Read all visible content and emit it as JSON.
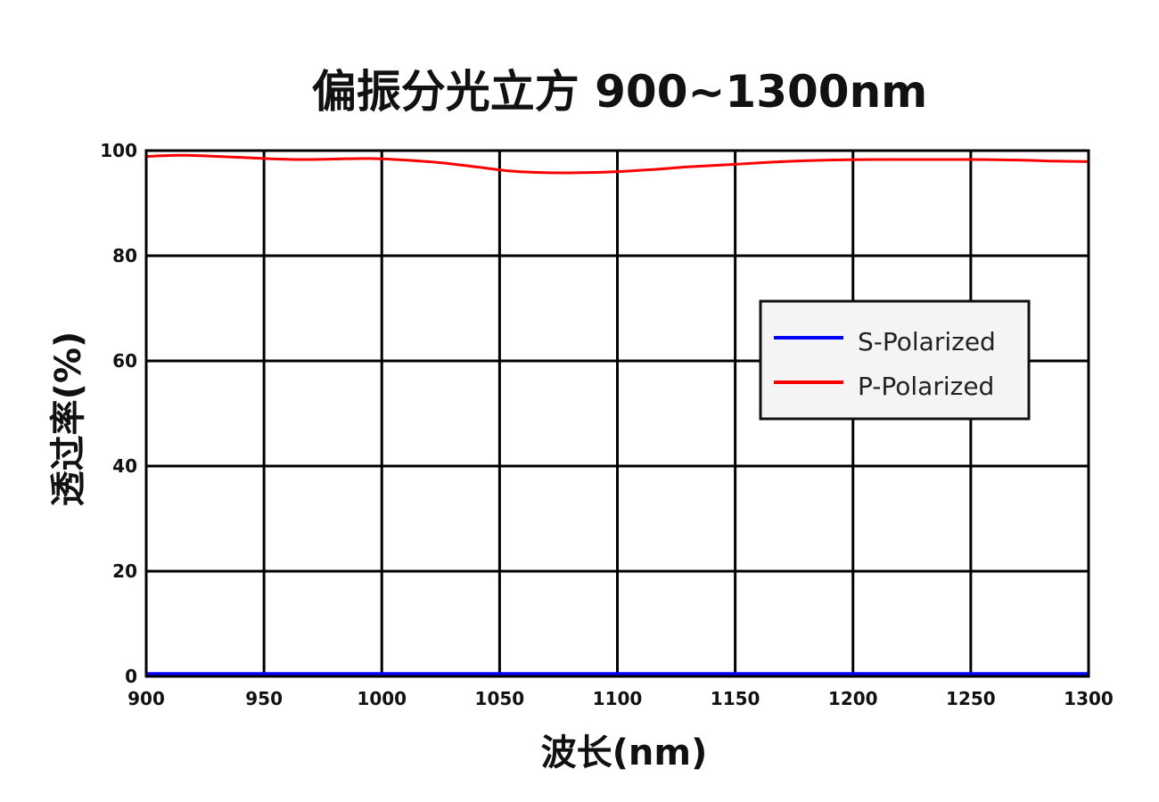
{
  "chart_data": {
    "type": "line",
    "title": "偏振分光立方 900~1300nm",
    "xlabel": "波长(nm)",
    "ylabel": "透过率(%)",
    "xlim": [
      900,
      1300
    ],
    "ylim": [
      0,
      100
    ],
    "xticks": [
      900,
      950,
      1000,
      1050,
      1100,
      1150,
      1200,
      1250,
      1300
    ],
    "yticks": [
      0,
      20,
      40,
      60,
      80,
      100
    ],
    "grid": true,
    "legend_position": "right",
    "series": [
      {
        "name": "S-Polarized",
        "color": "#0000ff",
        "x": [
          900,
          950,
          1000,
          1050,
          1100,
          1150,
          1200,
          1250,
          1300
        ],
        "y": [
          0.3,
          0.3,
          0.3,
          0.3,
          0.3,
          0.3,
          0.3,
          0.3,
          0.3
        ]
      },
      {
        "name": "P-Polarized",
        "color": "#ff0000",
        "x": [
          900,
          915,
          930,
          950,
          965,
          980,
          995,
          1010,
          1025,
          1040,
          1055,
          1070,
          1085,
          1100,
          1115,
          1130,
          1150,
          1170,
          1190,
          1210,
          1230,
          1250,
          1270,
          1285,
          1300
        ],
        "y": [
          98.9,
          99.1,
          98.9,
          98.5,
          98.3,
          98.4,
          98.5,
          98.2,
          97.7,
          96.9,
          96.1,
          95.8,
          95.8,
          96.0,
          96.4,
          96.9,
          97.4,
          97.9,
          98.2,
          98.3,
          98.3,
          98.3,
          98.2,
          98.0,
          97.9
        ]
      }
    ]
  }
}
